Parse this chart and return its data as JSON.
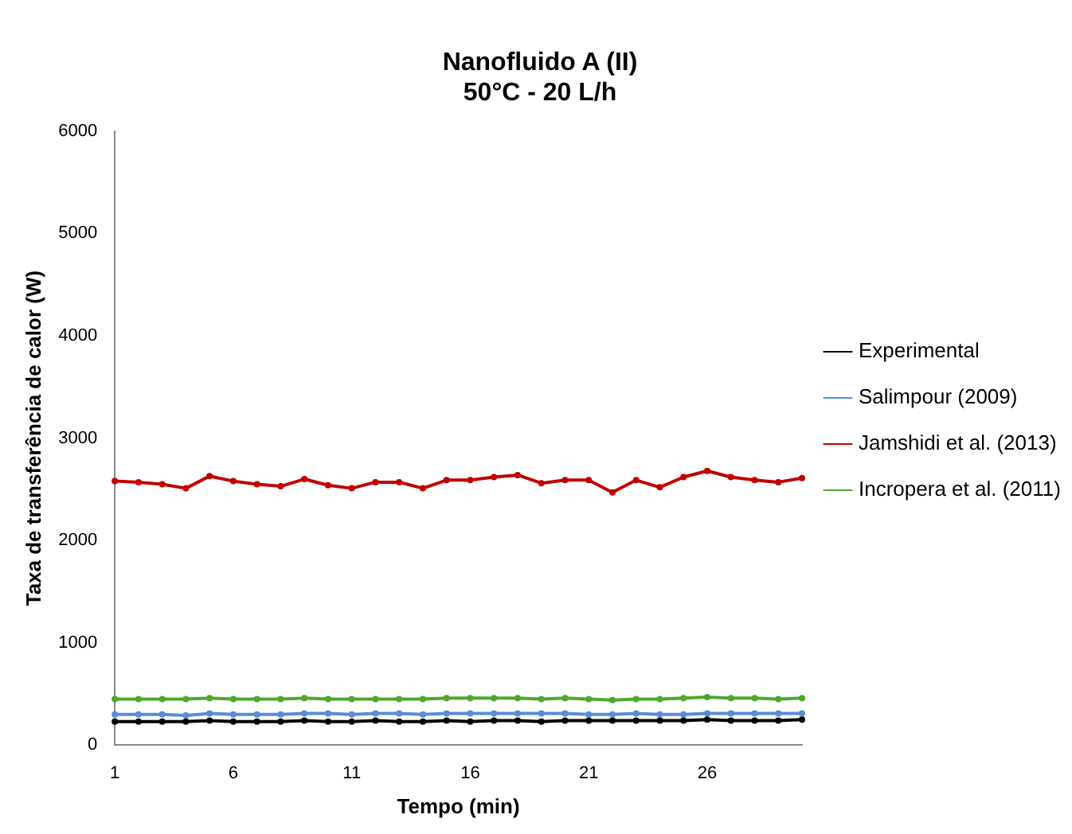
{
  "chart_data": {
    "type": "line",
    "title": [
      "Nanofluido A (II)",
      "50°C - 20 L/h"
    ],
    "xlabel": "Tempo (min)",
    "ylabel": "Taxa de transferência de calor (W)",
    "categories": [
      "1",
      null,
      null,
      null,
      null,
      "6",
      null,
      null,
      null,
      null,
      "11",
      null,
      null,
      null,
      null,
      "16",
      null,
      null,
      null,
      null,
      "21",
      null,
      null,
      null,
      null,
      "26",
      null,
      null,
      null,
      null
    ],
    "series": [
      {
        "name": "Experimental",
        "color": "#000000",
        "values": [
          230,
          230,
          230,
          230,
          240,
          230,
          230,
          230,
          240,
          230,
          230,
          240,
          230,
          230,
          240,
          230,
          240,
          240,
          230,
          240,
          240,
          240,
          240,
          240,
          240,
          250,
          240,
          240,
          240,
          250
        ]
      },
      {
        "name": "Salimpour (2009)",
        "color": "#558ed5",
        "values": [
          300,
          300,
          300,
          290,
          310,
          300,
          300,
          300,
          310,
          310,
          300,
          310,
          310,
          300,
          310,
          310,
          310,
          310,
          310,
          310,
          300,
          300,
          310,
          300,
          300,
          310,
          310,
          310,
          310,
          310
        ]
      },
      {
        "name": "Jamshidi et al. (2013)",
        "color": "#c00000",
        "values": [
          2580,
          2570,
          2550,
          2510,
          2630,
          2580,
          2550,
          2530,
          2600,
          2540,
          2510,
          2570,
          2570,
          2510,
          2590,
          2590,
          2620,
          2640,
          2560,
          2590,
          2590,
          2470,
          2590,
          2520,
          2620,
          2680,
          2620,
          2590,
          2570,
          2610
        ]
      },
      {
        "name": "Incropera et al. (2011)",
        "color": "#4ea72e",
        "values": [
          450,
          450,
          450,
          450,
          460,
          450,
          450,
          450,
          460,
          450,
          450,
          450,
          450,
          450,
          460,
          460,
          460,
          460,
          450,
          460,
          450,
          440,
          450,
          450,
          460,
          470,
          460,
          460,
          450,
          460
        ]
      }
    ],
    "ylim": [
      0,
      6000
    ],
    "yticks": [
      0,
      1000,
      2000,
      3000,
      4000,
      5000,
      6000
    ],
    "grid": false,
    "legend": "right",
    "marker": "circle",
    "line_style": "solid"
  }
}
